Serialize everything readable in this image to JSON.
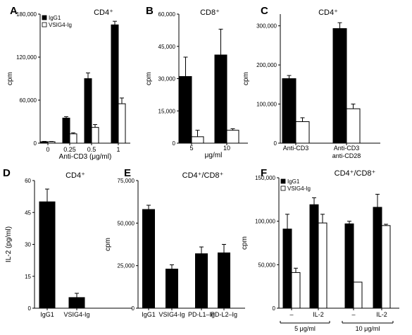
{
  "chart_data": [
    {
      "id": "A",
      "type": "bar",
      "title": "CD4⁺",
      "xlabel": "Anti-CD3 (μg/ml)",
      "ylabel": "cpm",
      "ylim": [
        0,
        180000
      ],
      "yticks": [
        0,
        60000,
        120000,
        180000
      ],
      "ytick_labels": [
        "0",
        "60,000",
        "120,000",
        "180,000"
      ],
      "categories": [
        "0",
        "0.25",
        "0.5",
        "1"
      ],
      "legend": "top-left",
      "series": [
        {
          "name": "IgG1",
          "fill": "#000000",
          "values": [
            2000,
            35000,
            90000,
            165000
          ],
          "errors": [
            500,
            2000,
            8000,
            5000
          ]
        },
        {
          "name": "VSIG4-Ig",
          "fill": "#ffffff",
          "values": [
            2000,
            13000,
            22000,
            55000
          ],
          "errors": [
            400,
            1500,
            4000,
            8000
          ]
        }
      ]
    },
    {
      "id": "B",
      "type": "bar",
      "title": "CD8⁺",
      "xlabel": "μg/ml",
      "ylabel": "cpm",
      "ylim": [
        0,
        60000
      ],
      "yticks": [
        0,
        15000,
        30000,
        45000,
        60000
      ],
      "ytick_labels": [
        "0",
        "15,000",
        "30,000",
        "45,000",
        "60,000"
      ],
      "categories": [
        "5",
        "10"
      ],
      "series": [
        {
          "fill": "#000000",
          "values": [
            31000,
            41000
          ],
          "errors": [
            9000,
            12000
          ]
        },
        {
          "fill": "#ffffff",
          "values": [
            3000,
            6000
          ],
          "errors": [
            3000,
            700
          ]
        }
      ]
    },
    {
      "id": "C",
      "type": "bar",
      "title": "CD4⁺",
      "ylabel": "cpm",
      "ylim": [
        0,
        330000
      ],
      "yticks": [
        0,
        100000,
        200000,
        300000
      ],
      "ytick_labels": [
        "0",
        "100,000",
        "200,000",
        "300,000"
      ],
      "categories": [
        "Anti-CD3",
        "Anti-CD3\nanti-CD28"
      ],
      "series": [
        {
          "fill": "#000000",
          "values": [
            165000,
            293000
          ],
          "errors": [
            8000,
            15000
          ]
        },
        {
          "fill": "#ffffff",
          "values": [
            55000,
            88000
          ],
          "errors": [
            10000,
            12000
          ]
        }
      ]
    },
    {
      "id": "D",
      "type": "bar",
      "title": "CD4⁺",
      "ylabel": "IL-2 (pg/ml)",
      "ylim": [
        0,
        60
      ],
      "yticks": [
        0,
        15,
        30,
        45,
        60
      ],
      "ytick_labels": [
        "0",
        "15",
        "30",
        "45",
        "60"
      ],
      "categories": [
        "IgG1",
        "VSIG4-Ig"
      ],
      "series": [
        {
          "fill": "#000000",
          "values": [
            50,
            5
          ],
          "errors": [
            6,
            2
          ]
        }
      ]
    },
    {
      "id": "E",
      "type": "bar",
      "title": "CD4⁺/CD8⁺",
      "ylabel": "cpm",
      "ylim": [
        0,
        75000
      ],
      "yticks": [
        0,
        25000,
        50000,
        75000
      ],
      "ytick_labels": [
        "0",
        "25,000",
        "50,000",
        "75,000"
      ],
      "categories": [
        "IgG1",
        "VSIG4-Ig",
        "PD-L1–Ig",
        "PD-L2–Ig"
      ],
      "series": [
        {
          "fill": "#000000",
          "values": [
            58000,
            23000,
            32000,
            32500
          ],
          "errors": [
            2500,
            2500,
            4000,
            5000
          ]
        }
      ]
    },
    {
      "id": "F",
      "type": "bar",
      "title": "CD4⁺/CD8⁺",
      "ylabel": "cpm",
      "ylim": [
        0,
        150000
      ],
      "yticks": [
        0,
        50000,
        100000,
        150000
      ],
      "ytick_labels": [
        "0",
        "50,000",
        "100,000",
        "150,000"
      ],
      "categories": [
        "–",
        "IL-2",
        "–",
        "IL-2"
      ],
      "groups": [
        "5 μg/ml",
        "10 μg/ml"
      ],
      "legend": "top-left",
      "series": [
        {
          "name": "IgG1",
          "fill": "#000000",
          "values": [
            91000,
            119000,
            97000,
            116000
          ],
          "errors": [
            17000,
            8000,
            3000,
            15000
          ]
        },
        {
          "name": "VSIG4-Ig",
          "fill": "#ffffff",
          "values": [
            41000,
            98000,
            30000,
            95000
          ],
          "errors": [
            5000,
            10000,
            0,
            1500
          ]
        }
      ]
    }
  ]
}
